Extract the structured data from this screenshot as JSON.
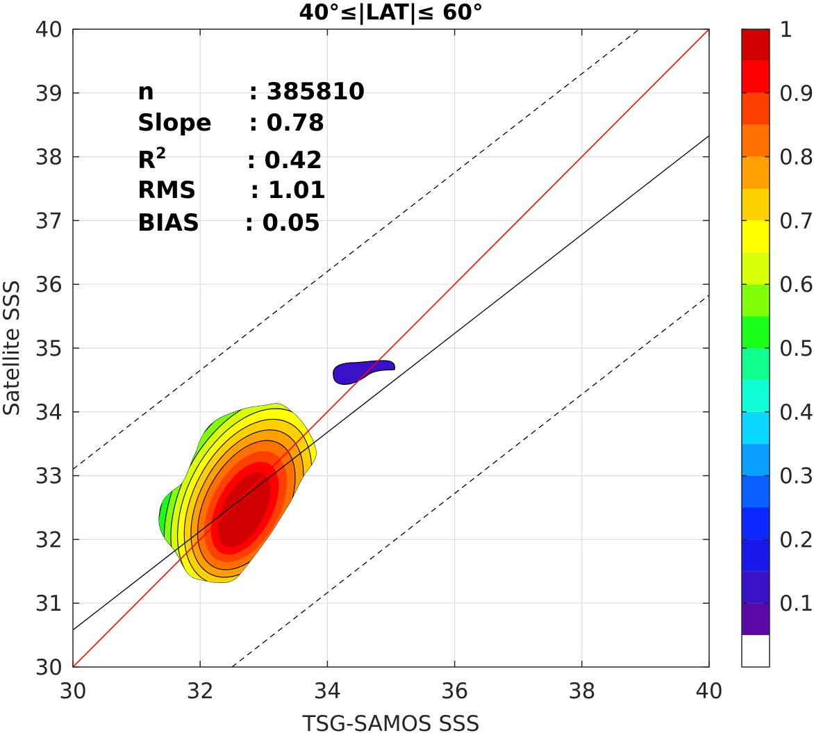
{
  "chart_data": {
    "type": "contour-scatter",
    "title": "40°≤|LAT|≤ 60°",
    "xlabel": "TSG-SAMOS SSS",
    "ylabel": "Satellite SSS",
    "xlim": [
      30,
      40
    ],
    "ylim": [
      30,
      40
    ],
    "xticks": [
      "30",
      "32",
      "34",
      "36",
      "38",
      "40"
    ],
    "yticks": [
      "30",
      "31",
      "32",
      "33",
      "34",
      "35",
      "36",
      "37",
      "38",
      "39",
      "40"
    ],
    "grid": true,
    "stats": [
      {
        "label": "n",
        "sup": "",
        "value": ": 385810"
      },
      {
        "label": "Slope",
        "sup": "",
        "value": ": 0.78"
      },
      {
        "label": "R",
        "sup": "2",
        "value": ": 0.42"
      },
      {
        "label": "RMS",
        "sup": "",
        "value": ": 1.01"
      },
      {
        "label": "BIAS",
        "sup": "",
        "value": ": 0.05"
      }
    ],
    "lines": {
      "one_to_one": {
        "x": [
          30,
          40
        ],
        "y": [
          30,
          40
        ],
        "color": "#ff0000"
      },
      "fit": {
        "x": [
          30,
          40
        ],
        "y": [
          30.58,
          38.33
        ],
        "color": "#000000"
      },
      "upper_dashed": {
        "x": [
          30,
          38.9
        ],
        "y": [
          33.1,
          40
        ],
        "color": "#000000"
      },
      "lower_dashed": {
        "x": [
          32.5,
          40
        ],
        "y": [
          30,
          35.83
        ],
        "color": "#000000"
      }
    },
    "colorbar": {
      "range": [
        0,
        1
      ],
      "tick_labels": [
        "0.1",
        "0.2",
        "0.3",
        "0.4",
        "0.5",
        "0.6",
        "0.7",
        "0.8",
        "0.9",
        "1"
      ],
      "tick_values": [
        0.1,
        0.2,
        0.3,
        0.4,
        0.5,
        0.6,
        0.7,
        0.8,
        0.9,
        1.0
      ],
      "levels": [
        0.05,
        0.1,
        0.15,
        0.2,
        0.25,
        0.3,
        0.35,
        0.4,
        0.45,
        0.5,
        0.55,
        0.6,
        0.65,
        0.7,
        0.75,
        0.8,
        0.85,
        0.9,
        0.95,
        1.0
      ],
      "colors": [
        "#ffffff",
        "#5a08a8",
        "#3a10c8",
        "#1818e8",
        "#0a28ff",
        "#0a60ff",
        "#0aa0ff",
        "#0ad8ff",
        "#10ffd8",
        "#10ff90",
        "#18ff18",
        "#80ff08",
        "#d8ff08",
        "#ffff00",
        "#ffd000",
        "#ffa000",
        "#ff7000",
        "#ff4000",
        "#ff0000",
        "#d00000",
        "#880000"
      ]
    },
    "density": {
      "main_peak": {
        "x": 32.7,
        "y": 32.55
      },
      "secondary_blob": {
        "x_range": [
          34.05,
          35.15
        ],
        "y_range": [
          34.4,
          34.85
        ],
        "max_level": 0.1
      }
    }
  }
}
